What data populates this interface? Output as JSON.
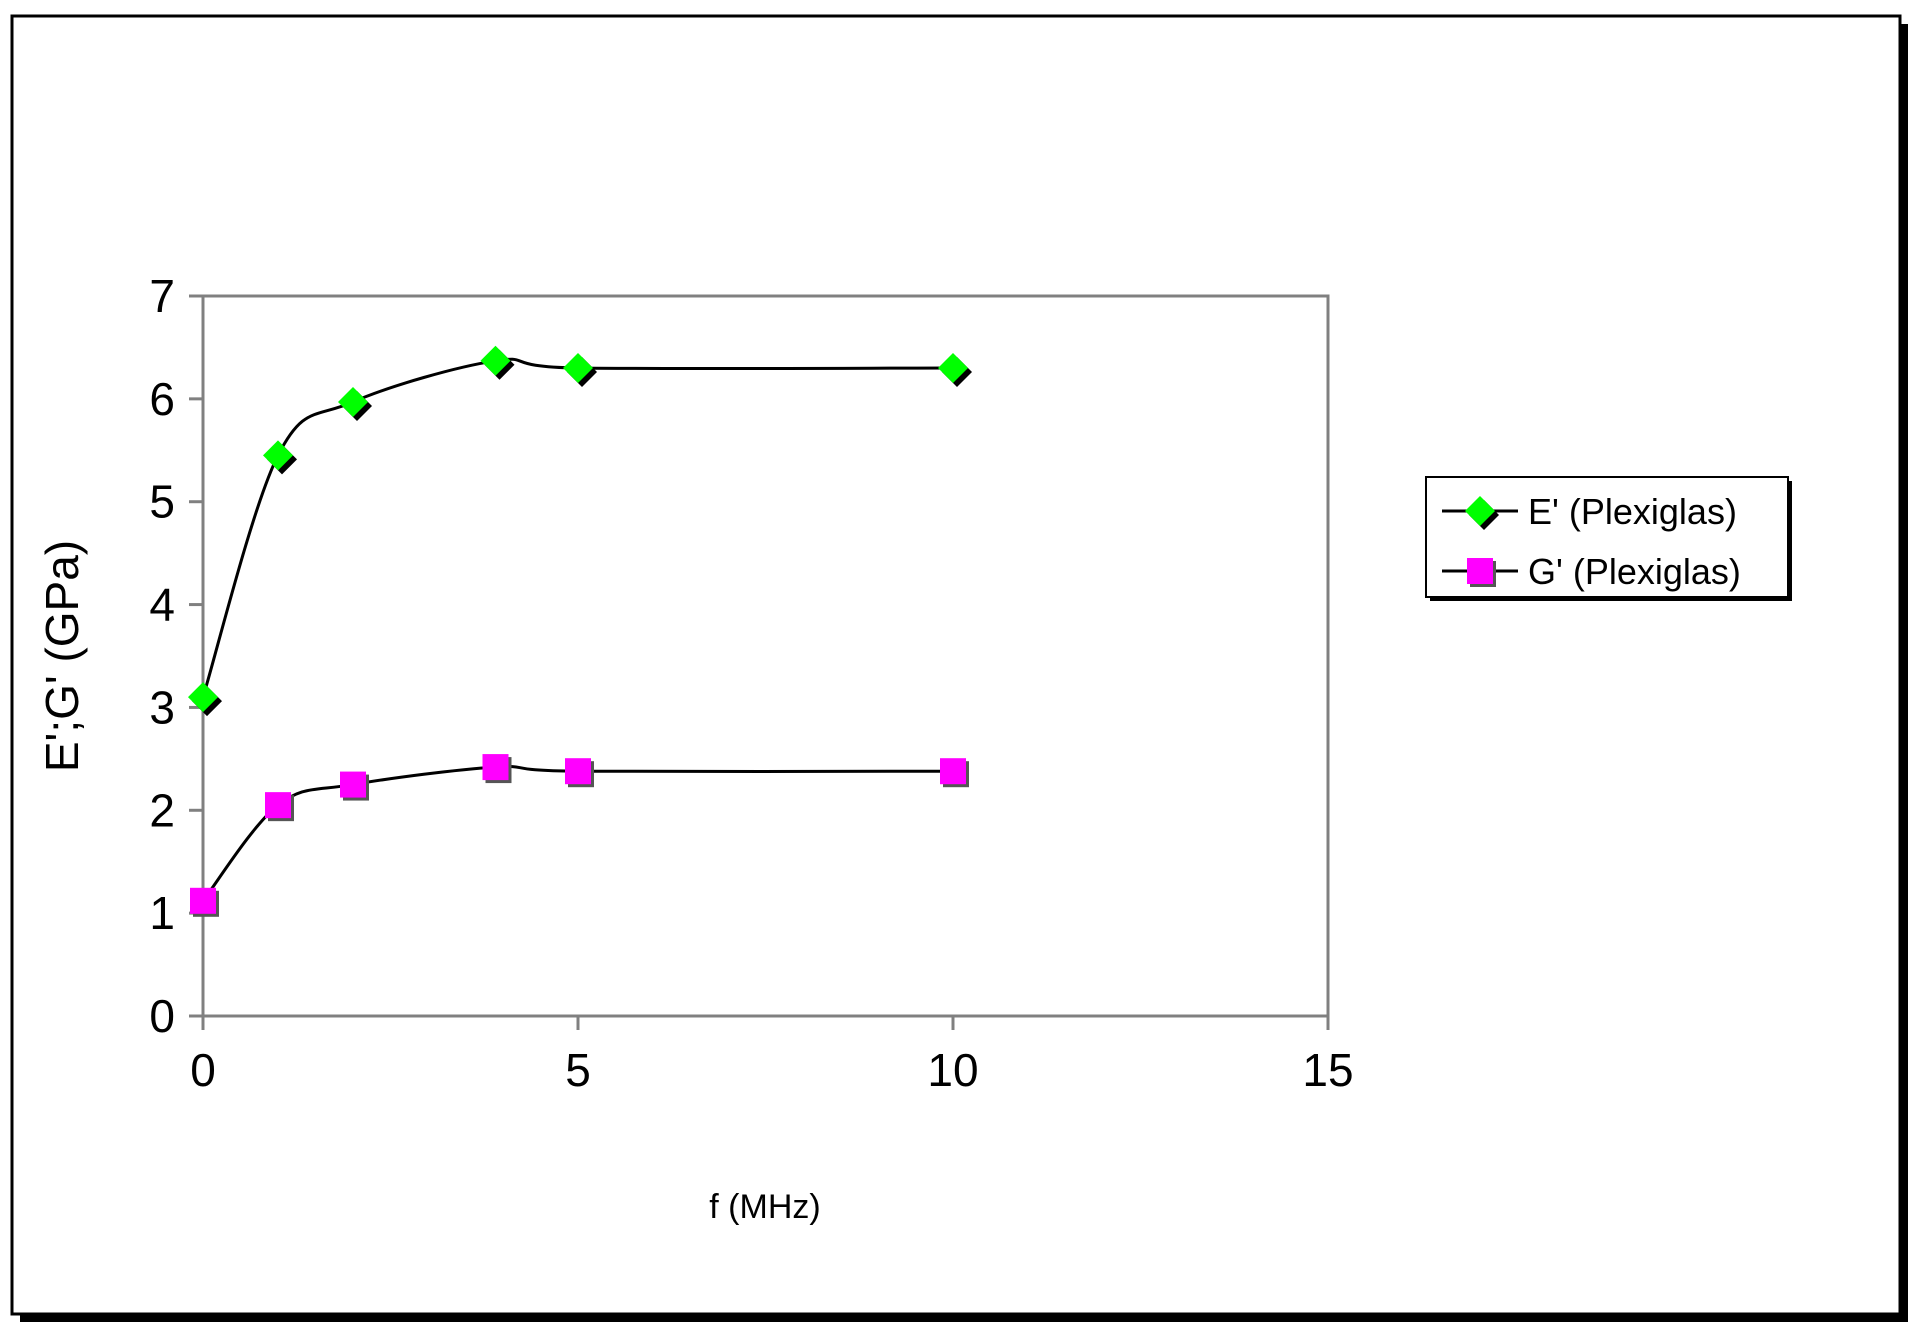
{
  "chart_data": {
    "type": "line",
    "title": "",
    "xlabel": "f (MHz)",
    "ylabel": "E';G' (GPa)",
    "xlim": [
      0,
      15
    ],
    "ylim": [
      0,
      7
    ],
    "xticks": [
      "0",
      "5",
      "10",
      "15"
    ],
    "yticks": [
      "0",
      "1",
      "2",
      "3",
      "4",
      "5",
      "6",
      "7"
    ],
    "grid": false,
    "legend_position": "right",
    "series": [
      {
        "name": "E' (Plexiglas)",
        "marker": "diamond",
        "color": "#00ff00",
        "x": [
          0,
          1,
          2,
          3.9,
          5,
          10
        ],
        "y": [
          3.1,
          5.45,
          5.97,
          6.37,
          6.3,
          6.3
        ]
      },
      {
        "name": "G' (Plexiglas)",
        "marker": "square",
        "color": "#ff00ff",
        "x": [
          0,
          1,
          2,
          3.9,
          5,
          10
        ],
        "y": [
          1.12,
          2.05,
          2.25,
          2.42,
          2.38,
          2.38
        ]
      }
    ]
  }
}
